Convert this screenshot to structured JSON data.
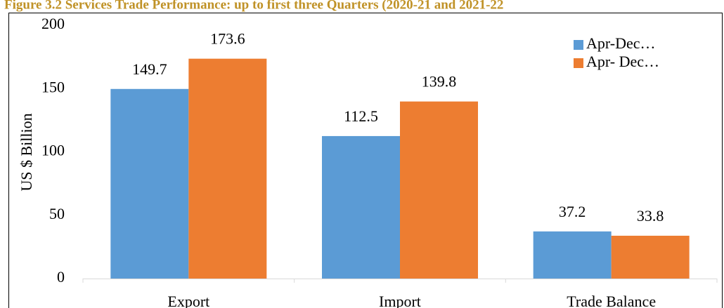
{
  "chart_data": {
    "type": "bar",
    "title": "Figure 3.2 Services Trade Performance: up to first three Quarters (2020-21 and 2021-22",
    "y_label": "US $ Billion",
    "categories": [
      "Export",
      "Import",
      "Trade Balance"
    ],
    "series": [
      {
        "name": "Apr-Dec…",
        "color": "#5b9bd5",
        "values": [
          149.7,
          112.5,
          37.2
        ]
      },
      {
        "name": "Apr- Dec…",
        "color": "#ed7d31",
        "values": [
          173.6,
          139.8,
          33.8
        ]
      }
    ],
    "ylim": [
      0,
      200
    ],
    "yticks": [
      0,
      50,
      100,
      150,
      200
    ],
    "legend": "upper right"
  }
}
